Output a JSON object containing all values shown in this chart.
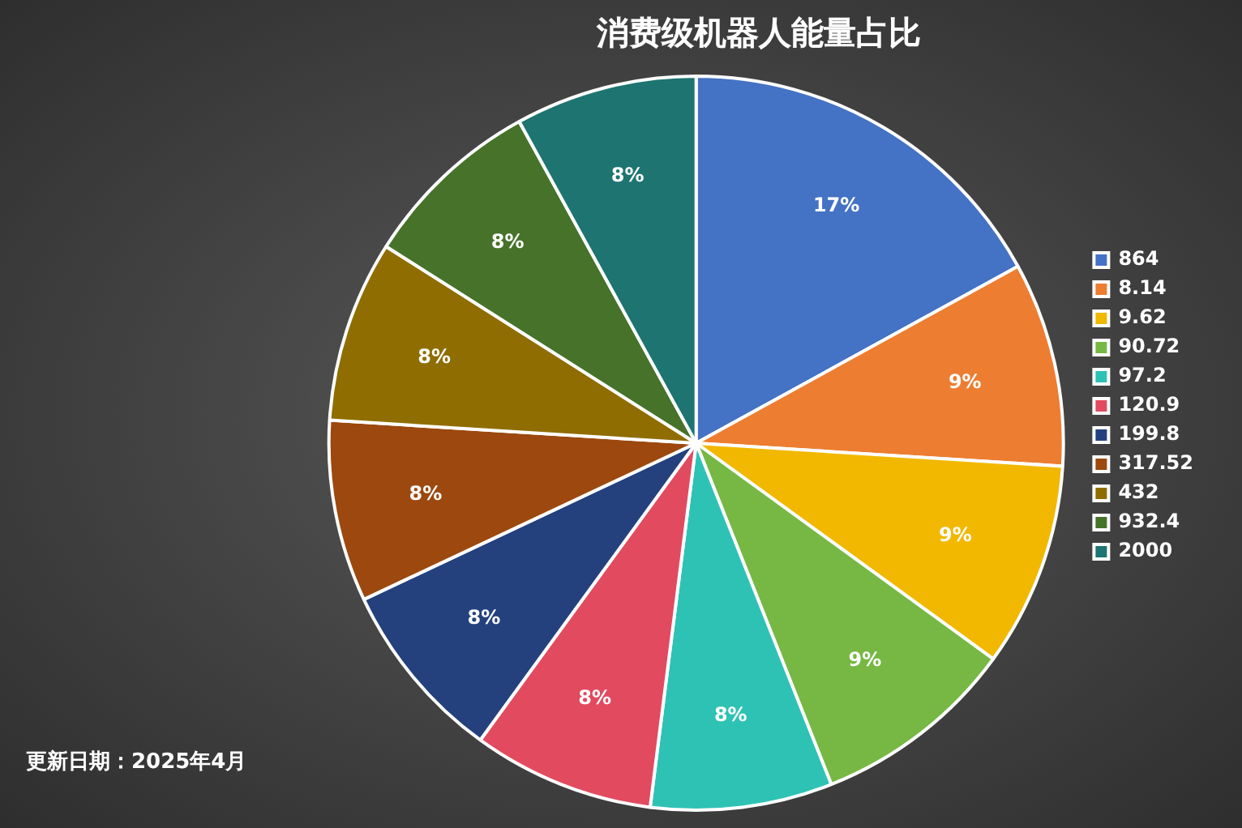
{
  "chart_data": {
    "type": "pie",
    "title": "消费级机器人能量占比",
    "categories": [
      "864",
      "8.14",
      "9.62",
      "90.72",
      "97.2",
      "120.9",
      "199.8",
      "317.52",
      "432",
      "932.4",
      "2000"
    ],
    "values": [
      17,
      9,
      9,
      9,
      8,
      8,
      8,
      8,
      8,
      8,
      8
    ],
    "value_labels": [
      "17%",
      "9%",
      "9%",
      "9%",
      "8%",
      "8%",
      "8%",
      "8%",
      "8%",
      "8%",
      "8%"
    ],
    "colors": [
      "#4472c4",
      "#ed7d31",
      "#f2b800",
      "#76b843",
      "#2ec2b4",
      "#e24a60",
      "#24417e",
      "#9c480e",
      "#8f6d00",
      "#46722a",
      "#1d7470"
    ],
    "legend": "right",
    "annotations": [
      "更新日期：2025年4月"
    ]
  }
}
